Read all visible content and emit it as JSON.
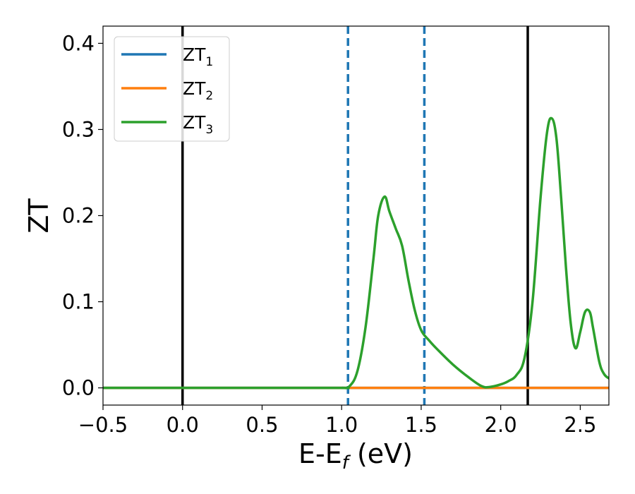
{
  "chart_data": {
    "type": "line",
    "title": "",
    "xlabel": "E-E",
    "xlabel_sub": "f",
    "xlabel_unit": " (eV)",
    "ylabel": "ZT",
    "xlim": [
      -0.5,
      2.68
    ],
    "ylim": [
      -0.02,
      0.42
    ],
    "xticks": [
      -0.5,
      0.0,
      0.5,
      1.0,
      1.5,
      2.0,
      2.5
    ],
    "xtick_labels": [
      "−0.5",
      "0.0",
      "0.5",
      "1.0",
      "1.5",
      "2.0",
      "2.5"
    ],
    "yticks": [
      0.0,
      0.1,
      0.2,
      0.3,
      0.4
    ],
    "ytick_labels": [
      "0.0",
      "0.1",
      "0.2",
      "0.3",
      "0.4"
    ],
    "grid": false,
    "legend": "upper-left",
    "series": [
      {
        "name": "ZT",
        "sub": "1",
        "color": "#1f77b4",
        "x": [
          -0.5,
          2.68
        ],
        "y": [
          0.0,
          0.0
        ]
      },
      {
        "name": "ZT",
        "sub": "2",
        "color": "#ff7f0e",
        "x": [
          -0.5,
          2.68
        ],
        "y": [
          0.0,
          0.0
        ]
      },
      {
        "name": "ZT",
        "sub": "3",
        "color": "#2ca02c",
        "x": [
          -0.5,
          0.9,
          1.0,
          1.05,
          1.1,
          1.15,
          1.2,
          1.23,
          1.27,
          1.3,
          1.34,
          1.38,
          1.42,
          1.46,
          1.5,
          1.55,
          1.6,
          1.7,
          1.8,
          1.88,
          1.93,
          2.0,
          2.05,
          2.1,
          2.15,
          2.2,
          2.25,
          2.29,
          2.32,
          2.35,
          2.38,
          2.41,
          2.44,
          2.47,
          2.5,
          2.53,
          2.56,
          2.58,
          2.62,
          2.65,
          2.68
        ],
        "y": [
          0.0,
          0.0,
          0.0,
          0.002,
          0.02,
          0.07,
          0.15,
          0.2,
          0.222,
          0.205,
          0.185,
          0.165,
          0.125,
          0.09,
          0.067,
          0.055,
          0.045,
          0.027,
          0.012,
          0.002,
          0.001,
          0.004,
          0.008,
          0.015,
          0.035,
          0.1,
          0.22,
          0.295,
          0.313,
          0.29,
          0.22,
          0.14,
          0.075,
          0.046,
          0.065,
          0.088,
          0.088,
          0.07,
          0.03,
          0.016,
          0.011
        ]
      }
    ],
    "vlines": [
      {
        "x": 0.0,
        "style": "solid",
        "color": "#000000"
      },
      {
        "x": 2.17,
        "style": "solid",
        "color": "#000000"
      },
      {
        "x": 1.04,
        "style": "dashed",
        "color": "#1f77b4"
      },
      {
        "x": 1.52,
        "style": "dashed",
        "color": "#1f77b4"
      }
    ]
  }
}
